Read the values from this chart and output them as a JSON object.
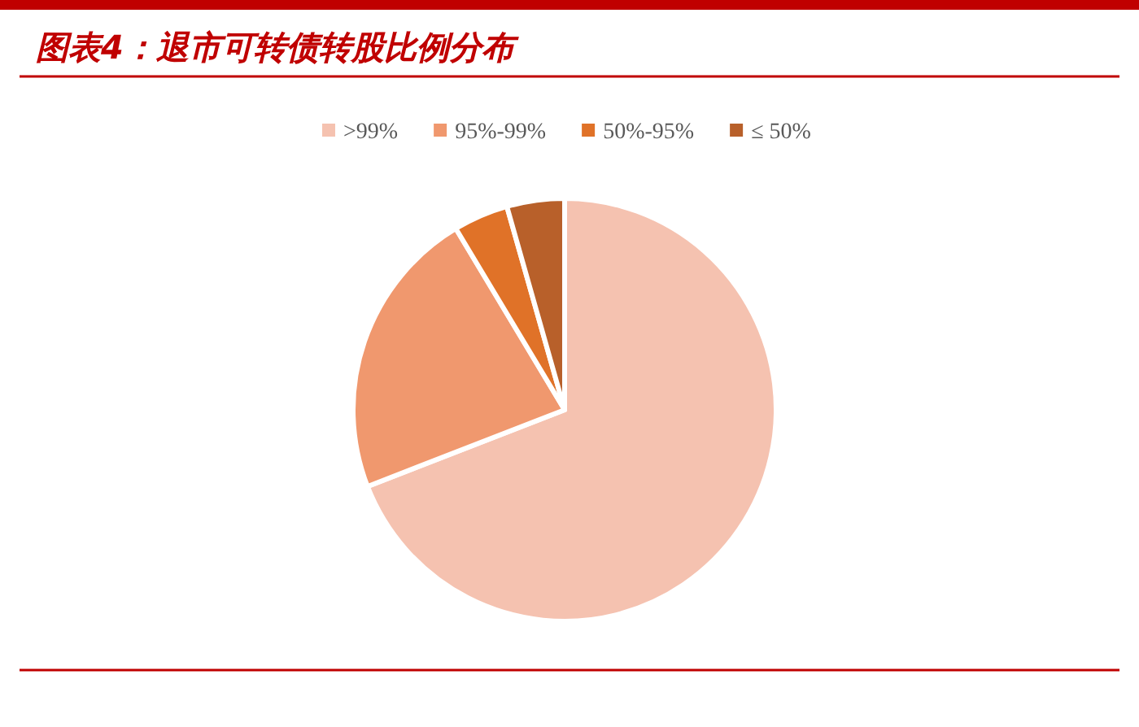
{
  "chart_data": {
    "type": "pie",
    "title": "图表4：退市可转债转股比例分布",
    "categories": [
      ">99%",
      "95%-99%",
      "50%-95%",
      "≤ 50%"
    ],
    "values": [
      69.1,
      22.3,
      4.2,
      4.4
    ],
    "colors": [
      "#f5c2b0",
      "#f0986e",
      "#e07228",
      "#b8602a"
    ],
    "legend": "top"
  }
}
